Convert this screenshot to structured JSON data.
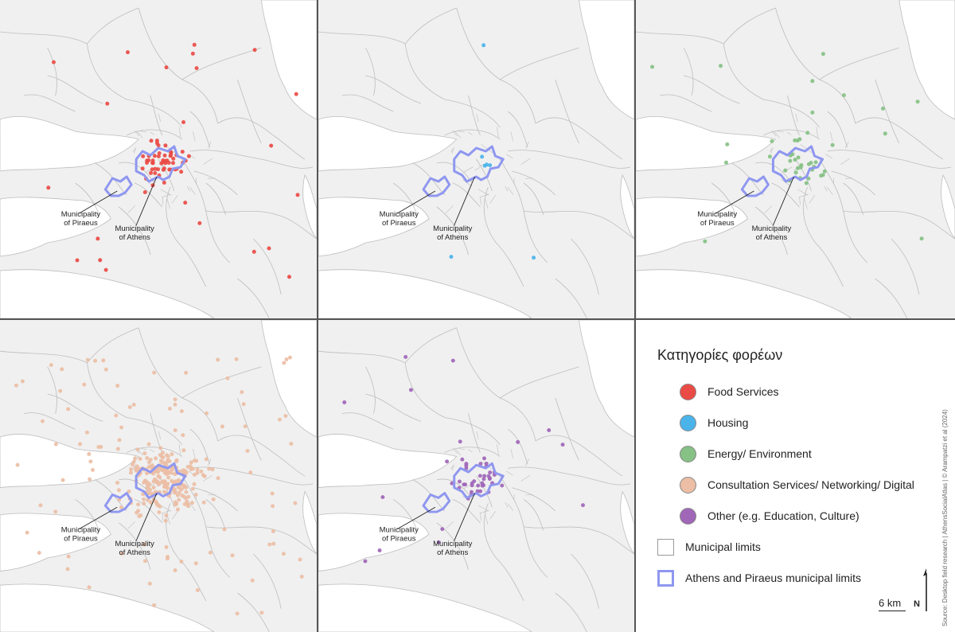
{
  "colors": {
    "food": "#ea4b45",
    "housing": "#4ab4ea",
    "energy": "#86c186",
    "consultation": "#ebbea5",
    "other": "#a066b8",
    "athens_piraeus_limits": "#8f97f0",
    "land": "#f0f0f0",
    "boundary": "#bdbdbd"
  },
  "panels": [
    {
      "key": "food",
      "label_piraeus": "Municipality\nof Piraeus",
      "label_athens": "Municipality\nof Athens"
    },
    {
      "key": "housing",
      "label_piraeus": "Municipality\nof Piraeus",
      "label_athens": "Municipality\nof Athens"
    },
    {
      "key": "energy",
      "label_piraeus": "Municipality\nof Piraeus",
      "label_athens": "Municipality\nof Athens"
    },
    {
      "key": "consultation",
      "label_piraeus": "Municipality\nof Piraeus",
      "label_athens": "Municipality\nof Athens"
    },
    {
      "key": "other",
      "label_piraeus": "Municipality\nof Piraeus",
      "label_athens": "Municipality\nof Athens"
    }
  ],
  "legend": {
    "title": "Κατηγορίες φορέων",
    "items": [
      {
        "label": "Food Services",
        "color": "#ea4b45"
      },
      {
        "label": "Housing",
        "color": "#4ab4ea"
      },
      {
        "label": "Energy/ Environment",
        "color": "#86c186"
      },
      {
        "label": "Consultation Services/ Networking/ Digital",
        "color": "#ebbea5"
      },
      {
        "label": "Other (e.g. Education, Culture)",
        "color": "#a066b8"
      }
    ],
    "municipal_limits": "Municipal limits",
    "athens_piraeus_limits": "Athens and Piraeus municipal limits"
  },
  "scale_label": "6 km",
  "north_label": "N",
  "source": "Source: Desktop field research | AthensSocialAtlas | © Arampatzi et al (2024)"
}
